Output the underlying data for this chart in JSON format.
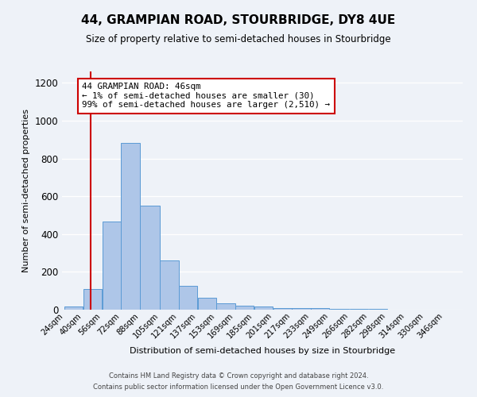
{
  "title": "44, GRAMPIAN ROAD, STOURBRIDGE, DY8 4UE",
  "subtitle": "Size of property relative to semi-detached houses in Stourbridge",
  "xlabel": "Distribution of semi-detached houses by size in Stourbridge",
  "ylabel": "Number of semi-detached properties",
  "bin_labels": [
    "24sqm",
    "40sqm",
    "56sqm",
    "72sqm",
    "88sqm",
    "105sqm",
    "121sqm",
    "137sqm",
    "153sqm",
    "169sqm",
    "185sqm",
    "201sqm",
    "217sqm",
    "233sqm",
    "249sqm",
    "266sqm",
    "282sqm",
    "298sqm",
    "314sqm",
    "330sqm",
    "346sqm"
  ],
  "bin_edges": [
    24,
    40,
    56,
    72,
    88,
    105,
    121,
    137,
    153,
    169,
    185,
    201,
    217,
    233,
    249,
    266,
    282,
    298,
    314,
    330,
    346
  ],
  "bar_heights": [
    15,
    110,
    465,
    880,
    550,
    260,
    125,
    62,
    35,
    20,
    15,
    10,
    10,
    8,
    5,
    3,
    3,
    2,
    0,
    0,
    1
  ],
  "bar_color": "#aec6e8",
  "bar_edge_color": "#5b9bd5",
  "vline_x": 46,
  "vline_color": "#cc0000",
  "ylim": [
    0,
    1260
  ],
  "yticks": [
    0,
    200,
    400,
    600,
    800,
    1000,
    1200
  ],
  "annotation_title": "44 GRAMPIAN ROAD: 46sqm",
  "annotation_line1": "← 1% of semi-detached houses are smaller (30)",
  "annotation_line2": "99% of semi-detached houses are larger (2,510) →",
  "annotation_box_color": "#cc0000",
  "footer_line1": "Contains HM Land Registry data © Crown copyright and database right 2024.",
  "footer_line2": "Contains public sector information licensed under the Open Government Licence v3.0.",
  "background_color": "#eef2f8",
  "plot_background": "#eef2f8"
}
